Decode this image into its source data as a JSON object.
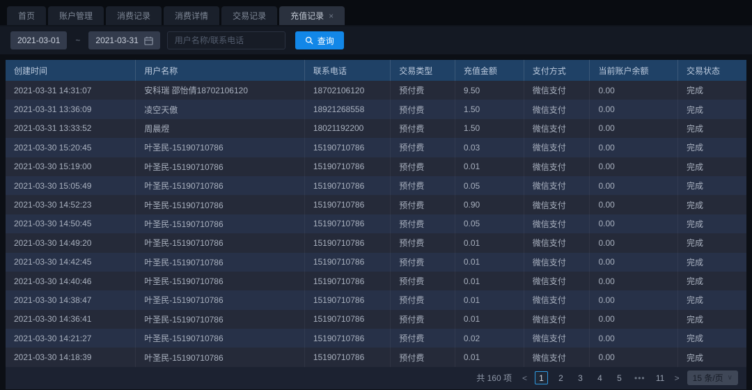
{
  "tabs": [
    {
      "label": "首页",
      "active": false,
      "closable": false
    },
    {
      "label": "账户管理",
      "active": false,
      "closable": false
    },
    {
      "label": "消费记录",
      "active": false,
      "closable": false
    },
    {
      "label": "消费详情",
      "active": false,
      "closable": false
    },
    {
      "label": "交易记录",
      "active": false,
      "closable": false
    },
    {
      "label": "充值记录",
      "active": true,
      "closable": true
    }
  ],
  "filters": {
    "date_start": "2021-03-01",
    "date_separator": "~",
    "date_end": "2021-03-31",
    "calendar_icon": "calendar",
    "search_placeholder": "用户名称/联系电话",
    "search_value": "",
    "query_button_label": "查询",
    "query_button_icon": "search",
    "query_button_color": "#1287e8"
  },
  "table": {
    "columns": [
      "创建时间",
      "用户名称",
      "联系电话",
      "交易类型",
      "充值金额",
      "支付方式",
      "当前账户余额",
      "交易状态"
    ],
    "rows": [
      [
        "2021-03-31 14:31:07",
        "安科瑞 邵怡倩18702106120",
        "18702106120",
        "预付费",
        "9.50",
        "微信支付",
        "0.00",
        "完成"
      ],
      [
        "2021-03-31 13:36:09",
        "凌空天傲",
        "18921268558",
        "预付费",
        "1.50",
        "微信支付",
        "0.00",
        "完成"
      ],
      [
        "2021-03-31 13:33:52",
        "周晨煜",
        "18021192200",
        "预付费",
        "1.50",
        "微信支付",
        "0.00",
        "完成"
      ],
      [
        "2021-03-30 15:20:45",
        "叶圣民-15190710786",
        "15190710786",
        "预付费",
        "0.03",
        "微信支付",
        "0.00",
        "完成"
      ],
      [
        "2021-03-30 15:19:00",
        "叶圣民-15190710786",
        "15190710786",
        "预付费",
        "0.01",
        "微信支付",
        "0.00",
        "完成"
      ],
      [
        "2021-03-30 15:05:49",
        "叶圣民-15190710786",
        "15190710786",
        "预付费",
        "0.05",
        "微信支付",
        "0.00",
        "完成"
      ],
      [
        "2021-03-30 14:52:23",
        "叶圣民-15190710786",
        "15190710786",
        "预付费",
        "0.90",
        "微信支付",
        "0.00",
        "完成"
      ],
      [
        "2021-03-30 14:50:45",
        "叶圣民-15190710786",
        "15190710786",
        "预付费",
        "0.05",
        "微信支付",
        "0.00",
        "完成"
      ],
      [
        "2021-03-30 14:49:20",
        "叶圣民-15190710786",
        "15190710786",
        "预付费",
        "0.01",
        "微信支付",
        "0.00",
        "完成"
      ],
      [
        "2021-03-30 14:42:45",
        "叶圣民-15190710786",
        "15190710786",
        "预付费",
        "0.01",
        "微信支付",
        "0.00",
        "完成"
      ],
      [
        "2021-03-30 14:40:46",
        "叶圣民-15190710786",
        "15190710786",
        "预付费",
        "0.01",
        "微信支付",
        "0.00",
        "完成"
      ],
      [
        "2021-03-30 14:38:47",
        "叶圣民-15190710786",
        "15190710786",
        "预付费",
        "0.01",
        "微信支付",
        "0.00",
        "完成"
      ],
      [
        "2021-03-30 14:36:41",
        "叶圣民-15190710786",
        "15190710786",
        "预付费",
        "0.01",
        "微信支付",
        "0.00",
        "完成"
      ],
      [
        "2021-03-30 14:21:27",
        "叶圣民-15190710786",
        "15190710786",
        "预付费",
        "0.02",
        "微信支付",
        "0.00",
        "完成"
      ],
      [
        "2021-03-30 14:18:39",
        "叶圣民-15190710786",
        "15190710786",
        "预付费",
        "0.01",
        "微信支付",
        "0.00",
        "完成"
      ]
    ]
  },
  "pagination": {
    "total_text": "共 160 项",
    "prev_arrow": "<",
    "next_arrow": ">",
    "pages": [
      {
        "label": "1",
        "active": true
      },
      {
        "label": "2",
        "active": false
      },
      {
        "label": "3",
        "active": false
      },
      {
        "label": "4",
        "active": false
      },
      {
        "label": "5",
        "active": false
      },
      {
        "label": "•••",
        "active": false,
        "ellipsis": true
      },
      {
        "label": "11",
        "active": false
      }
    ],
    "page_size_label": "15 条/页",
    "page_size_caret": "∨"
  },
  "colors": {
    "accent_blue": "#1287e8",
    "header_blue": "#1f4166",
    "active_page_border": "#2f9ae0"
  }
}
